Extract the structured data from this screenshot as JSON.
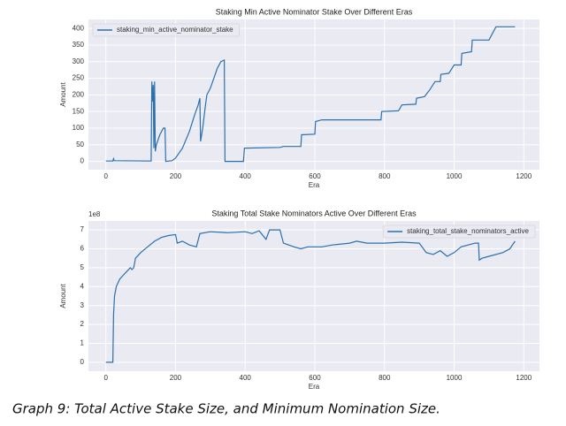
{
  "chart_data": [
    {
      "type": "line",
      "title": "Staking Min Active Nominator Stake Over Different Eras",
      "xlabel": "Era",
      "ylabel": "Amount",
      "x": [
        0,
        20,
        22,
        24,
        130,
        132,
        134,
        136,
        138,
        140,
        142,
        145,
        155,
        165,
        170,
        172,
        190,
        200,
        220,
        240,
        255,
        265,
        270,
        272,
        278,
        285,
        290,
        300,
        310,
        320,
        330,
        340,
        342,
        395,
        398,
        500,
        510,
        560,
        562,
        600,
        602,
        610,
        620,
        790,
        792,
        840,
        842,
        850,
        890,
        892,
        915,
        930,
        945,
        960,
        962,
        985,
        1000,
        1020,
        1022,
        1050,
        1052,
        1100,
        1120,
        1175
      ],
      "series": [
        {
          "name": "staking_min_active_nominator_stake",
          "color": "#2b70ad",
          "values": [
            1,
            1,
            8,
            2,
            1,
            240,
            180,
            230,
            40,
            240,
            30,
            50,
            80,
            100,
            100,
            0,
            2,
            10,
            40,
            90,
            140,
            170,
            190,
            60,
            100,
            160,
            200,
            220,
            250,
            280,
            300,
            305,
            0,
            0,
            40,
            42,
            45,
            45,
            80,
            82,
            120,
            122,
            125,
            125,
            150,
            152,
            155,
            170,
            172,
            190,
            195,
            215,
            240,
            240,
            262,
            265,
            290,
            290,
            325,
            330,
            365,
            365,
            405,
            405
          ]
        }
      ],
      "xlim": [
        -50,
        1245
      ],
      "ylim": [
        -25,
        427
      ],
      "xticks": [
        0,
        200,
        400,
        600,
        800,
        1000,
        1200
      ],
      "yticks": [
        0,
        50,
        100,
        150,
        200,
        250,
        300,
        350,
        400
      ],
      "legend": "upper left",
      "grid": true
    },
    {
      "type": "line",
      "title": "Staking Total Stake Nominators Active Over Different Eras",
      "xlabel": "Era",
      "ylabel": "Amount",
      "offset_label": "1e8",
      "x": [
        0,
        20,
        22,
        25,
        30,
        40,
        50,
        60,
        70,
        75,
        80,
        85,
        100,
        120,
        140,
        160,
        180,
        200,
        205,
        220,
        240,
        260,
        270,
        300,
        350,
        400,
        420,
        440,
        460,
        470,
        500,
        510,
        540,
        560,
        580,
        620,
        650,
        700,
        720,
        750,
        800,
        850,
        900,
        920,
        940,
        960,
        980,
        1000,
        1020,
        1040,
        1060,
        1070,
        1072,
        1080,
        1100,
        1140,
        1160,
        1175
      ],
      "series": [
        {
          "name": "staking_total_stake_nominators_active",
          "color": "#2b70ad",
          "values": [
            0,
            0,
            2.5,
            3.5,
            4.0,
            4.4,
            4.6,
            4.8,
            5.0,
            4.9,
            5.0,
            5.5,
            5.8,
            6.1,
            6.4,
            6.6,
            6.7,
            6.75,
            6.3,
            6.4,
            6.2,
            6.1,
            6.8,
            6.9,
            6.85,
            6.9,
            6.8,
            6.95,
            6.5,
            7.0,
            7.0,
            6.3,
            6.1,
            6.0,
            6.1,
            6.1,
            6.2,
            6.3,
            6.4,
            6.3,
            6.3,
            6.35,
            6.3,
            5.8,
            5.7,
            5.9,
            5.6,
            5.8,
            6.1,
            6.2,
            6.3,
            6.3,
            5.4,
            5.5,
            5.6,
            5.8,
            6.0,
            6.4
          ]
        }
      ],
      "xlim": [
        -50,
        1245
      ],
      "ylim": [
        -0.47,
        7.47
      ],
      "xticks": [
        0,
        200,
        400,
        600,
        800,
        1000,
        1200
      ],
      "yticks": [
        0,
        1,
        2,
        3,
        4,
        5,
        6,
        7
      ],
      "legend": "upper right",
      "grid": true
    }
  ],
  "caption": "Graph 9: Total Active Stake Size, and Minimum Nomination Size."
}
